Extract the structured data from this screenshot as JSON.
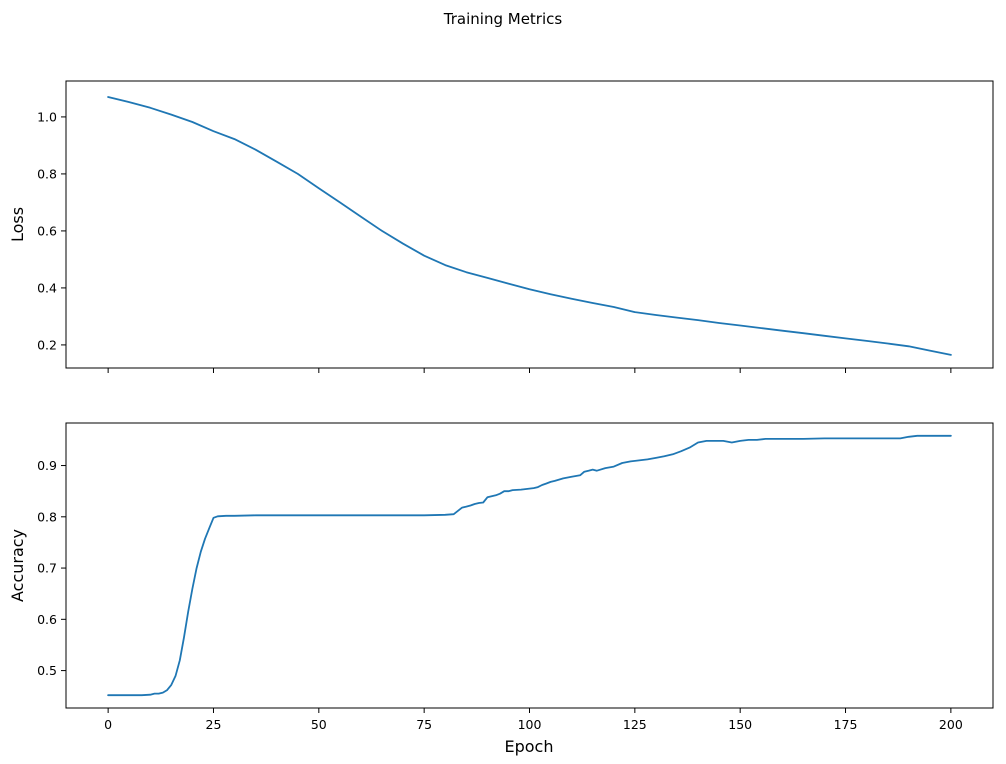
{
  "figure": {
    "title": "Training Metrics",
    "background": "#ffffff",
    "line_color": "#1f77b4"
  },
  "chart_data": [
    {
      "type": "line",
      "title": "",
      "xlabel": "",
      "ylabel": "Loss",
      "xlim": [
        -10,
        210
      ],
      "ylim": [
        0.119,
        1.126
      ],
      "xticks": [
        0,
        25,
        50,
        75,
        100,
        125,
        150,
        175,
        200
      ],
      "yticks": [
        0.2,
        0.4,
        0.6,
        0.8,
        1.0
      ],
      "show_xticklabels": false,
      "grid": false,
      "legend": "none",
      "series": [
        {
          "name": "loss",
          "x": [
            0,
            5,
            10,
            15,
            20,
            25,
            30,
            35,
            40,
            45,
            50,
            55,
            60,
            65,
            70,
            75,
            80,
            85,
            90,
            95,
            100,
            105,
            110,
            115,
            120,
            125,
            130,
            135,
            140,
            145,
            150,
            155,
            160,
            165,
            170,
            175,
            180,
            185,
            190,
            195,
            200
          ],
          "y": [
            1.07,
            1.052,
            1.032,
            1.008,
            0.982,
            0.95,
            0.922,
            0.885,
            0.843,
            0.8,
            0.75,
            0.7,
            0.65,
            0.6,
            0.555,
            0.513,
            0.48,
            0.455,
            0.435,
            0.415,
            0.395,
            0.378,
            0.362,
            0.347,
            0.333,
            0.315,
            0.305,
            0.296,
            0.287,
            0.277,
            0.268,
            0.259,
            0.25,
            0.241,
            0.232,
            0.223,
            0.214,
            0.205,
            0.195,
            0.18,
            0.165
          ]
        }
      ]
    },
    {
      "type": "line",
      "title": "",
      "xlabel": "Epoch",
      "ylabel": "Accuracy",
      "xlim": [
        -10,
        210
      ],
      "ylim": [
        0.427,
        0.983
      ],
      "xticks": [
        0,
        25,
        50,
        75,
        100,
        125,
        150,
        175,
        200
      ],
      "yticks": [
        0.5,
        0.6,
        0.7,
        0.8,
        0.9
      ],
      "show_xticklabels": true,
      "grid": false,
      "legend": "none",
      "series": [
        {
          "name": "accuracy",
          "x": [
            0,
            2,
            4,
            6,
            8,
            10,
            11,
            12,
            13,
            14,
            15,
            16,
            17,
            18,
            19,
            20,
            21,
            22,
            23,
            24,
            25,
            26,
            28,
            30,
            35,
            40,
            45,
            50,
            55,
            60,
            65,
            70,
            75,
            80,
            82,
            84,
            85,
            86,
            87,
            88,
            89,
            90,
            91,
            92,
            93,
            94,
            95,
            96,
            98,
            100,
            101,
            102,
            103,
            104,
            105,
            106,
            108,
            110,
            112,
            113,
            114,
            115,
            116,
            118,
            120,
            122,
            124,
            126,
            128,
            130,
            132,
            134,
            136,
            138,
            140,
            142,
            144,
            146,
            148,
            150,
            152,
            154,
            156,
            158,
            160,
            165,
            170,
            175,
            180,
            185,
            188,
            190,
            192,
            195,
            200
          ],
          "y": [
            0.452,
            0.452,
            0.452,
            0.452,
            0.452,
            0.453,
            0.455,
            0.455,
            0.457,
            0.462,
            0.472,
            0.49,
            0.52,
            0.565,
            0.615,
            0.66,
            0.7,
            0.732,
            0.757,
            0.778,
            0.798,
            0.801,
            0.802,
            0.802,
            0.803,
            0.803,
            0.803,
            0.803,
            0.803,
            0.803,
            0.803,
            0.803,
            0.803,
            0.804,
            0.805,
            0.818,
            0.82,
            0.822,
            0.825,
            0.827,
            0.828,
            0.838,
            0.84,
            0.842,
            0.845,
            0.85,
            0.85,
            0.852,
            0.853,
            0.855,
            0.856,
            0.858,
            0.862,
            0.865,
            0.868,
            0.87,
            0.875,
            0.878,
            0.881,
            0.888,
            0.89,
            0.892,
            0.89,
            0.895,
            0.898,
            0.905,
            0.908,
            0.91,
            0.912,
            0.915,
            0.918,
            0.922,
            0.928,
            0.935,
            0.945,
            0.948,
            0.948,
            0.948,
            0.945,
            0.948,
            0.95,
            0.95,
            0.952,
            0.952,
            0.952,
            0.952,
            0.953,
            0.953,
            0.953,
            0.953,
            0.953,
            0.956,
            0.958,
            0.958,
            0.958
          ]
        }
      ]
    }
  ]
}
